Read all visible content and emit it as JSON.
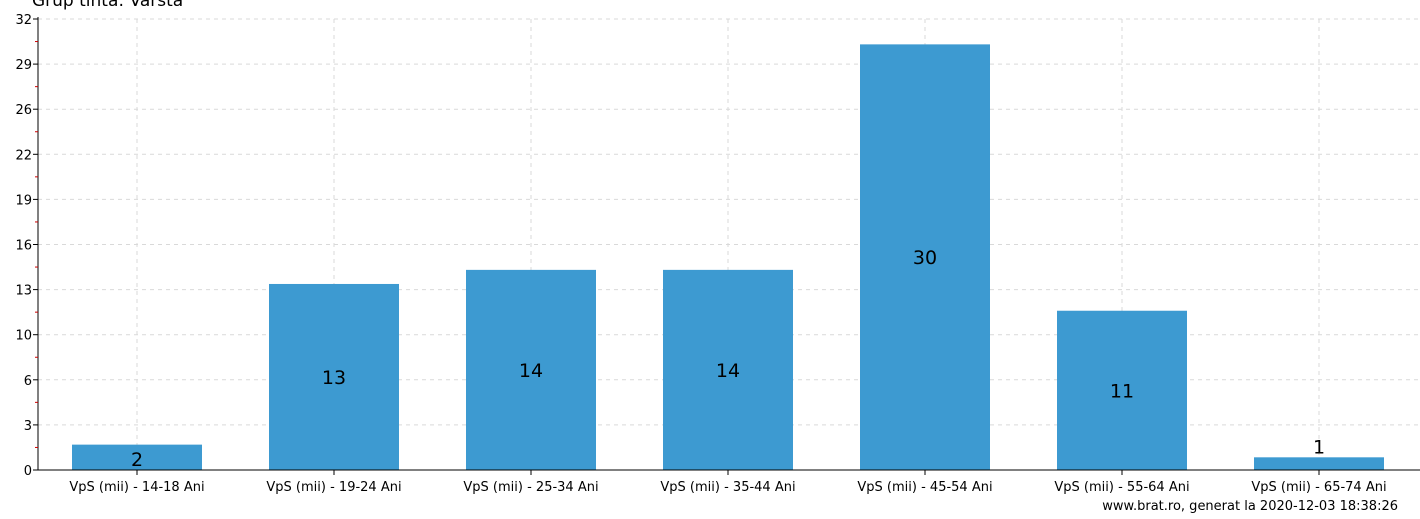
{
  "chart_data": {
    "type": "bar",
    "title": "Grup tinta: Varsta",
    "categories": [
      "VpS (mii) - 14-18 Ani",
      "VpS (mii) - 19-24 Ani",
      "VpS (mii) - 25-34 Ani",
      "VpS (mii) - 35-44 Ani",
      "VpS (mii) - 45-54 Ani",
      "VpS (mii) - 55-64 Ani",
      "VpS (mii) - 65-74 Ani"
    ],
    "values": [
      1.8,
      13.2,
      14.2,
      14.2,
      30.2,
      11.3,
      0.9
    ],
    "data_labels": [
      "2",
      "13",
      "14",
      "14",
      "30",
      "11",
      "1"
    ],
    "yticks": [
      "0",
      "3",
      "6",
      "10",
      "13",
      "16",
      "19",
      "22",
      "26",
      "29",
      "32"
    ],
    "ylim": [
      0,
      32
    ],
    "grid": true,
    "bar_color": "#3d9ad1",
    "grid_color": "#d9d9d9",
    "minor_tick_color": "#cc0000"
  },
  "footer": "www.brat.ro, generat la 2020-12-03 18:38:26"
}
